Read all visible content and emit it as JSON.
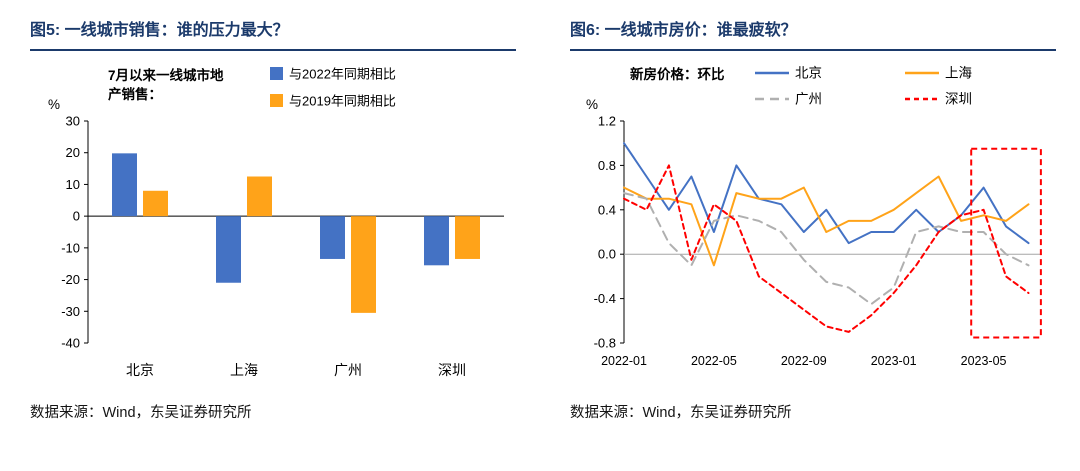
{
  "left_panel": {
    "title": "图5:  一线城市销售：谁的压力最大？",
    "source": "数据来源：Wind，东吴证券研究所"
  },
  "right_panel": {
    "title": "图6:  一线城市房价：谁最疲软？",
    "source": "数据来源：Wind，东吴证券研究所"
  },
  "colors": {
    "title_navy": "#1B3A6B",
    "series_blue": "#4472C4",
    "series_orange": "#FFA319",
    "series_gray": "#B0B0B0",
    "series_red": "#FF0000"
  },
  "chart_data": [
    {
      "type": "bar",
      "title": "7月以来一线城市地产销售：",
      "annotation_lines": [
        "7月以来一线城市地",
        "产销售："
      ],
      "ylabel": "%",
      "ylim": [
        -40,
        30
      ],
      "yticks": [
        30,
        20,
        10,
        0,
        -10,
        -20,
        -30,
        -40
      ],
      "categories": [
        "北京",
        "上海",
        "广州",
        "深圳"
      ],
      "series": [
        {
          "name": "与2022年同期相比",
          "color": "#4472C4",
          "values": [
            19.8,
            -21.0,
            -13.5,
            -15.5
          ]
        },
        {
          "name": "与2019年同期相比",
          "color": "#FFA319",
          "values": [
            8.0,
            12.5,
            -30.5,
            -13.5
          ]
        }
      ],
      "grid": false,
      "legend_position": "top-right"
    },
    {
      "type": "line",
      "title": "新房价格：环比",
      "ylabel": "%",
      "ylim": [
        -0.8,
        1.2
      ],
      "yticks": [
        1.2,
        0.8,
        0.4,
        0.0,
        -0.4,
        -0.8
      ],
      "x": [
        "2022-01",
        "2022-02",
        "2022-03",
        "2022-04",
        "2022-05",
        "2022-06",
        "2022-07",
        "2022-08",
        "2022-09",
        "2022-10",
        "2022-11",
        "2022-12",
        "2023-01",
        "2023-02",
        "2023-03",
        "2023-04",
        "2023-05",
        "2023-06",
        "2023-07"
      ],
      "xticks": [
        {
          "index": 0,
          "label": "2022-01"
        },
        {
          "index": 4,
          "label": "2022-05"
        },
        {
          "index": 8,
          "label": "2022-09"
        },
        {
          "index": 12,
          "label": "2023-01"
        },
        {
          "index": 16,
          "label": "2023-05"
        }
      ],
      "series": [
        {
          "name": "北京",
          "color": "#4472C4",
          "dash": null,
          "values": [
            1.0,
            0.7,
            0.4,
            0.7,
            0.2,
            0.8,
            0.5,
            0.45,
            0.2,
            0.4,
            0.1,
            0.2,
            0.2,
            0.4,
            0.2,
            0.35,
            0.6,
            0.25,
            0.1
          ]
        },
        {
          "name": "上海",
          "color": "#FFA319",
          "dash": null,
          "values": [
            0.6,
            0.5,
            0.5,
            0.45,
            -0.1,
            0.55,
            0.5,
            0.5,
            0.6,
            0.2,
            0.3,
            0.3,
            0.4,
            0.55,
            0.7,
            0.3,
            0.35,
            0.3,
            0.45
          ]
        },
        {
          "name": "广州",
          "color": "#B0B0B0",
          "dash": "9,6",
          "values": [
            0.55,
            0.5,
            0.1,
            -0.1,
            0.3,
            0.35,
            0.3,
            0.2,
            -0.05,
            -0.25,
            -0.3,
            -0.45,
            -0.3,
            0.2,
            0.25,
            0.2,
            0.2,
            0.0,
            -0.1
          ]
        },
        {
          "name": "深圳",
          "color": "#FF0000",
          "dash": "5,4",
          "values": [
            0.5,
            0.4,
            0.8,
            -0.05,
            0.45,
            0.3,
            -0.2,
            -0.35,
            -0.5,
            -0.65,
            -0.7,
            -0.55,
            -0.35,
            -0.1,
            0.2,
            0.35,
            0.4,
            -0.2,
            -0.35
          ]
        }
      ],
      "highlight_box": {
        "x_from": 15.45,
        "x_to": 18.55,
        "y_from": -0.75,
        "y_to": 0.95,
        "color": "#FF0000",
        "dash": "6,4"
      },
      "grid": false,
      "legend_position": "top"
    }
  ]
}
